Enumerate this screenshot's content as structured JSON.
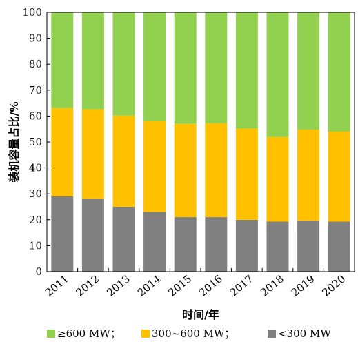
{
  "chart_data": {
    "type": "bar",
    "stacked": true,
    "xlabel": "时间/年",
    "ylabel": "装机容量占比/%",
    "ylim": [
      0,
      100
    ],
    "yticks": [
      "0",
      "10",
      "20",
      "30",
      "40",
      "50",
      "60",
      "70",
      "80",
      "90",
      "100"
    ],
    "categories": [
      "2011",
      "2012",
      "2013",
      "2014",
      "2015",
      "2016",
      "2017",
      "2018",
      "2019",
      "2020"
    ],
    "series": [
      {
        "name": "<300 MW",
        "color": "#808080",
        "values": [
          29,
          28.2,
          25,
          23,
          21,
          21,
          20,
          19.3,
          19.7,
          19.3
        ]
      },
      {
        "name": "300~600 MW；",
        "color": "#FFC000",
        "values": [
          34.1,
          34.4,
          35.2,
          35,
          36,
          36.2,
          35.2,
          32.6,
          35.1,
          34.7
        ]
      },
      {
        "name": "≥600 MW；",
        "color": "#92D050",
        "values": [
          36.9,
          37.4,
          39.8,
          42,
          43,
          42.8,
          44.8,
          48.1,
          45.2,
          46
        ]
      }
    ],
    "legend": [
      "≥600 MW；",
      "300~600 MW；",
      "<300 MW"
    ],
    "legend_position": "bottom",
    "grid": false
  }
}
